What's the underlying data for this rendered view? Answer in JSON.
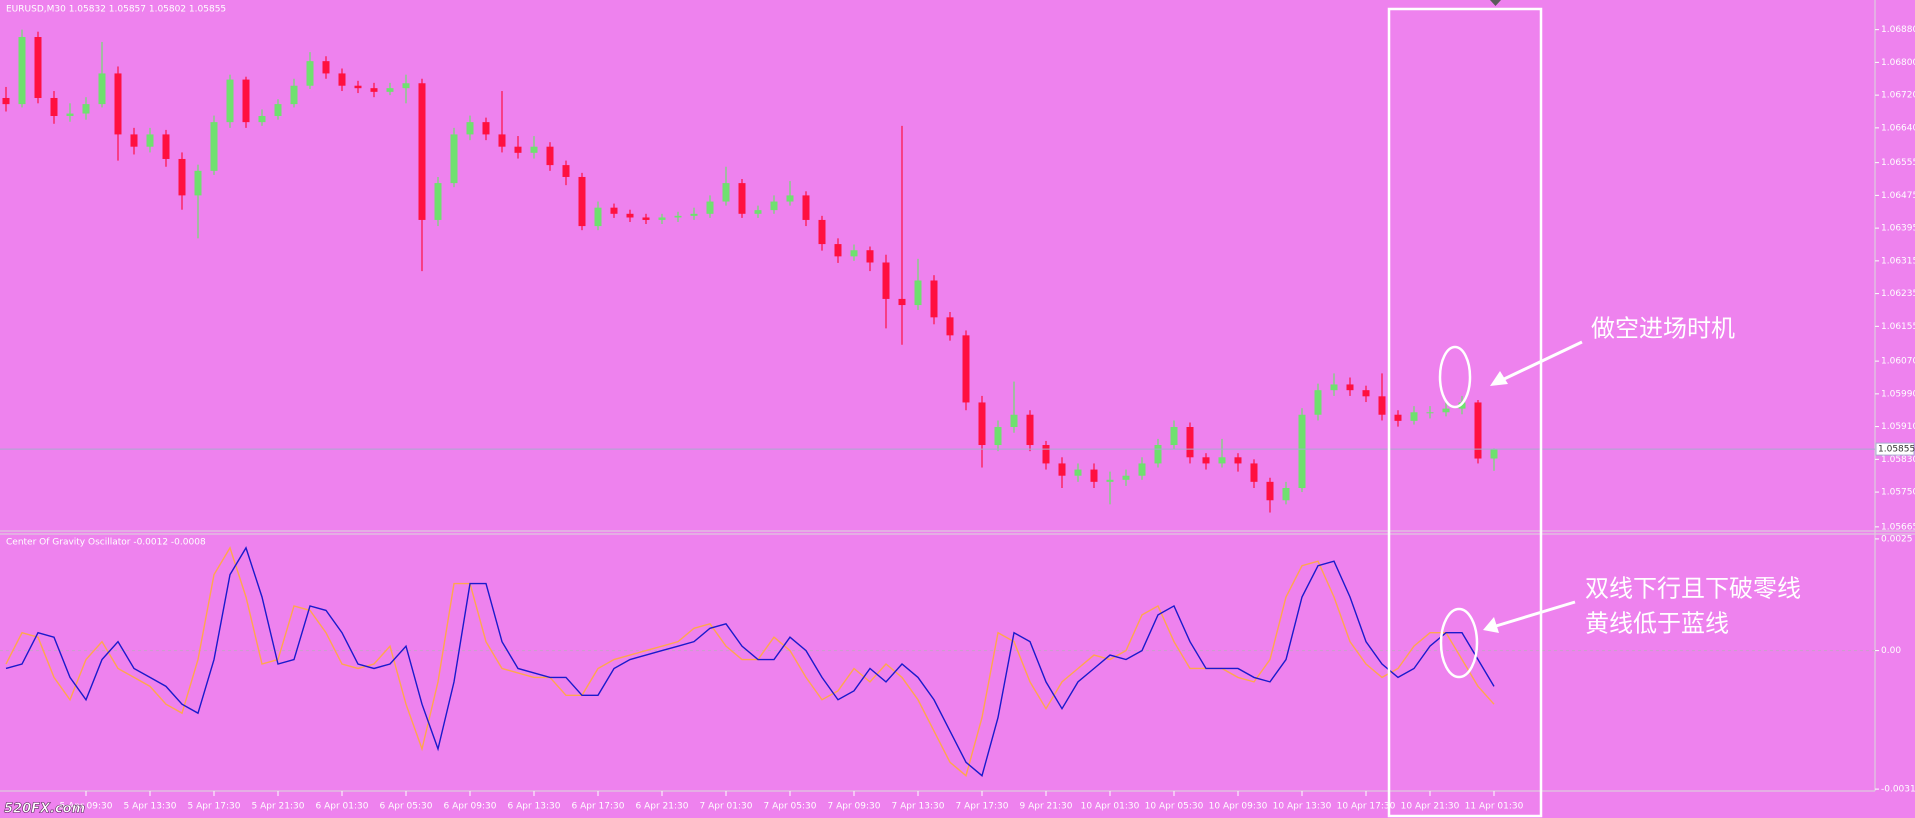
{
  "chart_data": [
    {
      "type": "candlestick",
      "title": "EURUSD,M30  1.05832 1.05857 1.05802 1.05855",
      "categories": [
        null,
        null,
        null,
        null,
        null,
        "5 Apr 09:30",
        null,
        null,
        null,
        "5 Apr 13:30",
        null,
        null,
        null,
        "5 Apr 17:30",
        null,
        null,
        null,
        "5 Apr 21:30",
        null,
        null,
        null,
        "6 Apr 01:30",
        null,
        null,
        null,
        "6 Apr 05:30",
        null,
        null,
        null,
        "6 Apr 09:30",
        null,
        null,
        null,
        "6 Apr 13:30",
        null,
        null,
        null,
        "6 Apr 17:30",
        null,
        null,
        null,
        "6 Apr 21:30",
        null,
        null,
        null,
        "7 Apr 01:30",
        null,
        null,
        null,
        "7 Apr 05:30",
        null,
        null,
        null,
        "7 Apr 09:30",
        null,
        null,
        null,
        "7 Apr 13:30",
        null,
        null,
        null,
        "7 Apr 17:30",
        null,
        null,
        null,
        "9 Apr 21:30",
        null,
        null,
        null,
        "10 Apr 01:30",
        null,
        null,
        null,
        "10 Apr 05:30",
        null,
        null,
        null,
        "10 Apr 09:30",
        null,
        null,
        null,
        "10 Apr 13:30",
        null,
        null,
        null,
        "10 Apr 17:30",
        null,
        null,
        null,
        "10 Apr 21:30",
        null,
        null,
        null,
        "11 Apr 01:30"
      ],
      "open": [
        1.06713,
        1.06698,
        1.06862,
        1.06713,
        1.06669,
        1.06675,
        1.06698,
        1.06773,
        1.06624,
        1.06594,
        1.06624,
        1.06564,
        1.06475,
        1.06535,
        1.06654,
        1.06758,
        1.06654,
        1.06669,
        1.06698,
        1.06743,
        1.06803,
        1.06773,
        1.06743,
        1.06737,
        1.06728,
        1.06737,
        1.06749,
        1.06415,
        1.06505,
        1.06624,
        1.06654,
        1.06624,
        1.06594,
        1.06579,
        1.06594,
        1.06549,
        1.0652,
        1.064,
        1.06445,
        1.0643,
        1.06421,
        1.06415,
        1.06421,
        1.06425,
        1.0643,
        1.0646,
        1.06505,
        1.0643,
        1.06439,
        1.0646,
        1.06475,
        1.06415,
        1.06356,
        1.06326,
        1.06341,
        1.06311,
        1.06222,
        1.06207,
        1.06267,
        1.06177,
        1.06133,
        1.05969,
        1.05865,
        1.05909,
        1.05939,
        1.05865,
        1.0582,
        1.0579,
        1.05805,
        1.05775,
        1.0578,
        1.0579,
        1.0582,
        1.05865,
        1.05909,
        1.05835,
        1.0582,
        1.05835,
        1.0582,
        1.05775,
        1.0573,
        1.0576,
        1.05939,
        1.05999,
        1.06013,
        1.05999,
        1.05984,
        1.05939,
        1.05924,
        1.05945,
        1.05945,
        1.05954,
        1.05969,
        1.05832
      ],
      "high": [
        1.0674,
        1.0688,
        1.06875,
        1.0673,
        1.067,
        1.06715,
        1.0685,
        1.0679,
        1.0664,
        1.0664,
        1.06635,
        1.0658,
        1.0655,
        1.0667,
        1.0677,
        1.06765,
        1.06685,
        1.0671,
        1.0676,
        1.06825,
        1.06815,
        1.06785,
        1.06755,
        1.0675,
        1.0675,
        1.0677,
        1.0676,
        1.0652,
        1.0664,
        1.0667,
        1.06665,
        1.0673,
        1.0662,
        1.0662,
        1.06605,
        1.0656,
        1.0653,
        1.0646,
        1.06455,
        1.0644,
        1.0643,
        1.0643,
        1.06435,
        1.06445,
        1.06475,
        1.06545,
        1.06515,
        1.0645,
        1.06475,
        1.0651,
        1.06485,
        1.06425,
        1.0637,
        1.06355,
        1.0635,
        1.0633,
        1.06645,
        1.0632,
        1.0628,
        1.0619,
        1.06145,
        1.05985,
        1.05925,
        1.0602,
        1.0595,
        1.05875,
        1.05835,
        1.0582,
        1.0582,
        1.058,
        1.05805,
        1.05835,
        1.0588,
        1.05925,
        1.0592,
        1.05845,
        1.0588,
        1.05845,
        1.0583,
        1.05785,
        1.05775,
        1.05955,
        1.06015,
        1.0604,
        1.0603,
        1.0601,
        1.0604,
        1.0595,
        1.0596,
        1.0596,
        1.0597,
        1.05985,
        1.05975,
        1.05857
      ],
      "low": [
        1.0668,
        1.0669,
        1.067,
        1.0665,
        1.06655,
        1.0666,
        1.0669,
        1.0656,
        1.06575,
        1.0658,
        1.06545,
        1.0644,
        1.0637,
        1.06525,
        1.0664,
        1.0664,
        1.06645,
        1.0666,
        1.0669,
        1.06735,
        1.0676,
        1.0673,
        1.06725,
        1.06715,
        1.0672,
        1.067,
        1.0629,
        1.064,
        1.06495,
        1.0661,
        1.0661,
        1.0658,
        1.06565,
        1.06565,
        1.06535,
        1.065,
        1.0639,
        1.0639,
        1.0642,
        1.0641,
        1.06405,
        1.06405,
        1.0641,
        1.06415,
        1.0642,
        1.0645,
        1.0642,
        1.0642,
        1.0643,
        1.0645,
        1.064,
        1.0634,
        1.0631,
        1.06315,
        1.0629,
        1.0615,
        1.0611,
        1.06195,
        1.0616,
        1.0612,
        1.0595,
        1.0581,
        1.0585,
        1.05895,
        1.0585,
        1.05805,
        1.0576,
        1.05775,
        1.0576,
        1.0572,
        1.05765,
        1.0578,
        1.0581,
        1.05855,
        1.0582,
        1.05805,
        1.0581,
        1.058,
        1.0576,
        1.057,
        1.0572,
        1.0575,
        1.05925,
        1.05985,
        1.05985,
        1.0597,
        1.05925,
        1.0591,
        1.05915,
        1.0593,
        1.05935,
        1.0594,
        1.0582,
        1.05802
      ],
      "close": [
        1.06698,
        1.06862,
        1.06713,
        1.06669,
        1.06675,
        1.06698,
        1.06773,
        1.06624,
        1.06594,
        1.06624,
        1.06564,
        1.06475,
        1.06535,
        1.06654,
        1.06758,
        1.06654,
        1.06669,
        1.06698,
        1.06743,
        1.06803,
        1.06773,
        1.06743,
        1.06737,
        1.06728,
        1.06737,
        1.06749,
        1.06415,
        1.06505,
        1.06624,
        1.06654,
        1.06624,
        1.06594,
        1.06579,
        1.06594,
        1.06549,
        1.0652,
        1.064,
        1.06445,
        1.0643,
        1.06421,
        1.06415,
        1.06421,
        1.06425,
        1.0643,
        1.0646,
        1.06505,
        1.0643,
        1.06439,
        1.0646,
        1.06475,
        1.06415,
        1.06356,
        1.06326,
        1.06341,
        1.06311,
        1.06222,
        1.06207,
        1.06267,
        1.06177,
        1.06133,
        1.05969,
        1.05865,
        1.05909,
        1.05939,
        1.05865,
        1.0582,
        1.0579,
        1.05805,
        1.05775,
        1.0578,
        1.0579,
        1.0582,
        1.05865,
        1.05909,
        1.05835,
        1.0582,
        1.05835,
        1.0582,
        1.05775,
        1.0573,
        1.0576,
        1.05939,
        1.05999,
        1.06013,
        1.05999,
        1.05984,
        1.05939,
        1.05924,
        1.05945,
        1.05945,
        1.05954,
        1.05969,
        1.05832,
        1.05855
      ],
      "up_color": "#6fe06f",
      "down_color": "#ff1040",
      "last_price": 1.05855,
      "ylim": [
        1.0565,
        1.0695
      ],
      "yticks": [
        {
          "value": 1.0688,
          "label": "1.06880"
        },
        {
          "value": 1.068,
          "label": "1.06800"
        },
        {
          "value": 1.0672,
          "label": "1.06720"
        },
        {
          "value": 1.0664,
          "label": "1.06640"
        },
        1.06555,
        1.06475,
        1.06395,
        1.06315,
        1.06235,
        1.06155,
        {
          "value": 1.0607,
          "label": "1.06070"
        },
        {
          "value": 1.0599,
          "label": "1.05990"
        },
        {
          "value": 1.0591,
          "label": "1.05910"
        },
        {
          "value": 1.0583,
          "label": "1.05830"
        },
        {
          "value": 1.0575,
          "label": "1.05750"
        },
        1.05665
      ],
      "grid": false
    },
    {
      "type": "line",
      "title": "Center Of Gravity Oscillator -0.0012 -0.0008",
      "series": [
        {
          "color": "#ffa64d",
          "values": [
            -0.0003,
            0.0004,
            0.0003,
            -0.0006,
            -0.0011,
            -0.0002,
            0.0002,
            -0.0004,
            -0.0006,
            -0.0008,
            -0.0012,
            -0.0014,
            -0.0002,
            0.0017,
            0.0023,
            0.0012,
            -0.0003,
            -0.0002,
            0.001,
            0.0009,
            0.0004,
            -0.0003,
            -0.0004,
            -0.0003,
            0.0001,
            -0.0012,
            -0.0022,
            -0.0007,
            0.0015,
            0.0015,
            0.0002,
            -0.0004,
            -0.0005,
            -0.0006,
            -0.0006,
            -0.001,
            -0.001,
            -0.0004,
            -0.0002,
            -0.0001,
            0,
            0.0001,
            0.0002,
            0.0005,
            0.0006,
            0.0001,
            -0.0002,
            -0.0002,
            0.0003,
            0,
            -0.0006,
            -0.0011,
            -0.0009,
            -0.0004,
            -0.0007,
            -0.0003,
            -0.0006,
            -0.0011,
            -0.0018,
            -0.0025,
            -0.0028,
            -0.0015,
            0.0004,
            0.0002,
            -0.0007,
            -0.0013,
            -0.0007,
            -0.0004,
            -0.0001,
            -0.0002,
            0,
            0.0008,
            0.001,
            0.0002,
            -0.0004,
            -0.0004,
            -0.0004,
            -0.0006,
            -0.0007,
            -0.0002,
            0.0012,
            0.0019,
            0.002,
            0.0012,
            0.0002,
            -0.0003,
            -0.0006,
            -0.0004,
            0.0001,
            0.0004,
            0.0004,
            -0.0002,
            -0.0008,
            -0.0012
          ]
        },
        {
          "color": "#1a1acc",
          "values": [
            -0.0004,
            -0.0003,
            0.0004,
            0.0003,
            -0.0006,
            -0.0011,
            -0.0002,
            0.0002,
            -0.0004,
            -0.0006,
            -0.0008,
            -0.0012,
            -0.0014,
            -0.0002,
            0.0017,
            0.0023,
            0.0012,
            -0.0003,
            -0.0002,
            0.001,
            0.0009,
            0.0004,
            -0.0003,
            -0.0004,
            -0.0003,
            0.0001,
            -0.0012,
            -0.0022,
            -0.0007,
            0.0015,
            0.0015,
            0.0002,
            -0.0004,
            -0.0005,
            -0.0006,
            -0.0006,
            -0.001,
            -0.001,
            -0.0004,
            -0.0002,
            -0.0001,
            0,
            0.0001,
            0.0002,
            0.0005,
            0.0006,
            0.0001,
            -0.0002,
            -0.0002,
            0.0003,
            0,
            -0.0006,
            -0.0011,
            -0.0009,
            -0.0004,
            -0.0007,
            -0.0003,
            -0.0006,
            -0.0011,
            -0.0018,
            -0.0025,
            -0.0028,
            -0.0015,
            0.0004,
            0.0002,
            -0.0007,
            -0.0013,
            -0.0007,
            -0.0004,
            -0.0001,
            -0.0002,
            0,
            0.0008,
            0.001,
            0.0002,
            -0.0004,
            -0.0004,
            -0.0004,
            -0.0006,
            -0.0007,
            -0.0002,
            0.0012,
            0.0019,
            0.002,
            0.0012,
            0.0002,
            -0.0003,
            -0.0006,
            -0.0004,
            0.0001,
            0.0004,
            0.0004,
            -0.0002,
            -0.0008
          ]
        }
      ],
      "ylim": [
        -0.00312,
        0.00261
      ],
      "yticks": [
        0.0025,
        {
          "value": 0,
          "label": "0.00"
        },
        -0.0031
      ],
      "zero_line": true,
      "grid": false
    }
  ],
  "annotations": [
    "做空进场时机",
    "双线下行且下破零线",
    "黄线低于蓝线"
  ],
  "watermark": "520FX.com"
}
